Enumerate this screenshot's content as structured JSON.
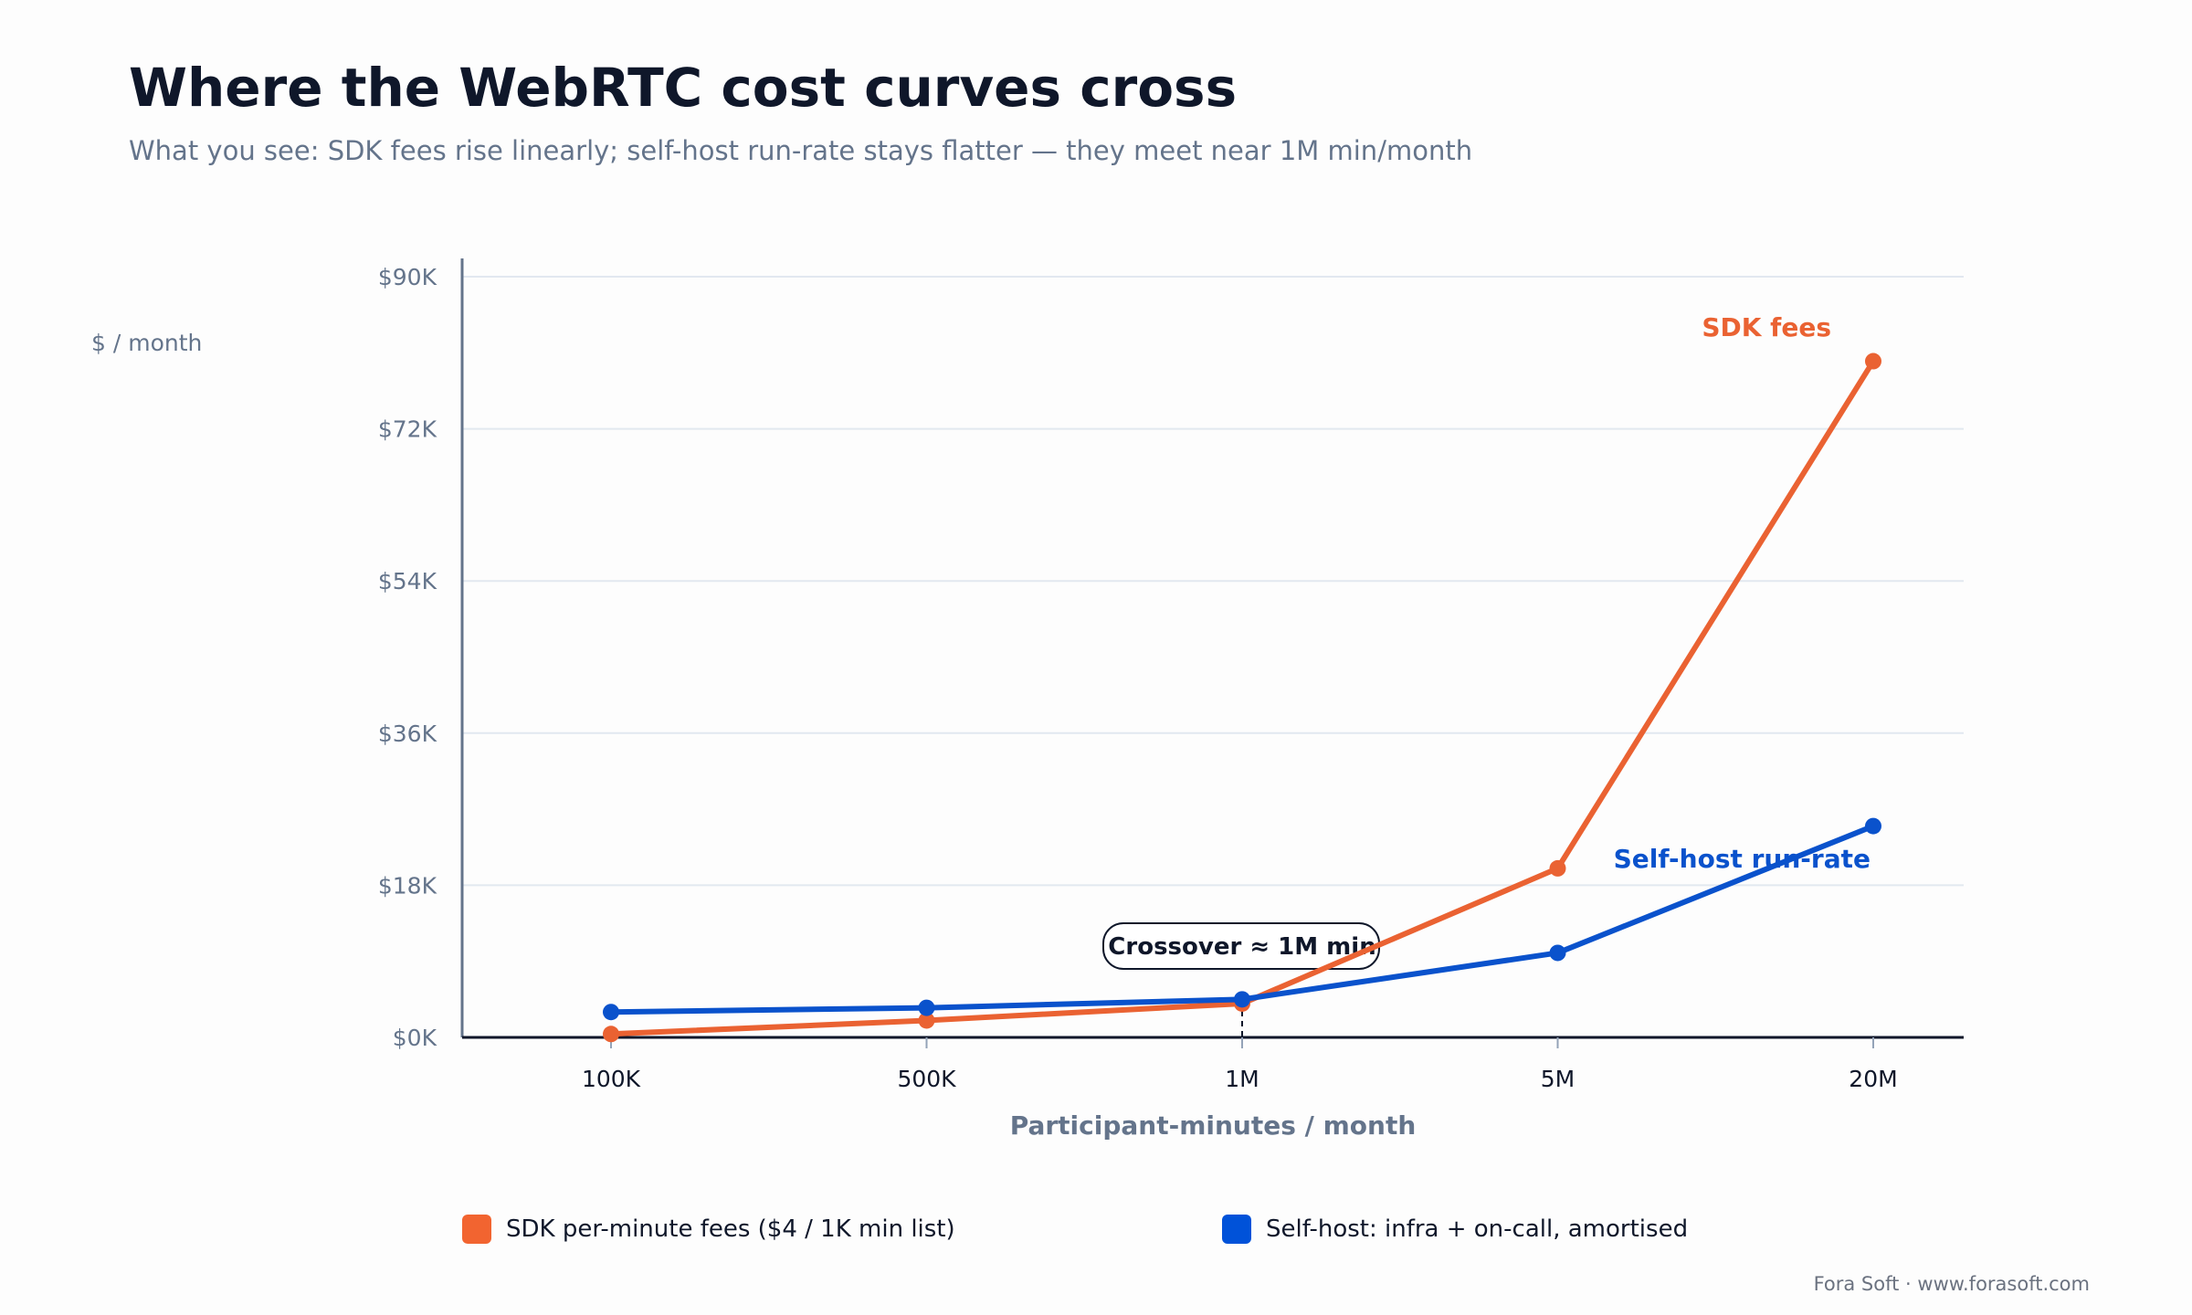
{
  "title": "Where the WebRTC cost curves cross",
  "subtitle": "What you see: SDK fees rise linearly; self-host run-rate stays flatter — they meet near 1M min/month",
  "footer": "Fora Soft · www.forasoft.com",
  "legend": [
    {
      "label": "SDK per-minute fees ($4 / 1K min list)",
      "color": "#f26430"
    },
    {
      "label": "Self-host: infra + on-call, amortised",
      "color": "#0052d9"
    }
  ],
  "chart_data": {
    "type": "line",
    "title": "Where the WebRTC cost curves cross",
    "subtitle": "What you see: SDK fees rise linearly; self-host run-rate stays flatter — they meet near 1M min/month",
    "xlabel": "Participant-minutes / month",
    "ylabel": "$ / month",
    "categories": [
      "100K",
      "500K",
      "1M",
      "5M",
      "20M"
    ],
    "ylim": [
      0,
      90000
    ],
    "yticks": [
      0,
      18000,
      36000,
      54000,
      72000,
      90000
    ],
    "ytick_labels": [
      "$0K",
      "$18K",
      "$36K",
      "$54K",
      "$72K",
      "$90K"
    ],
    "grid": true,
    "legend_position": "bottom",
    "series": [
      {
        "name": "SDK per-minute fees ($4 / 1K min list)",
        "label": "SDK fees",
        "color": "#ea6232",
        "values": [
          400,
          2000,
          4000,
          20000,
          80000
        ]
      },
      {
        "name": "Self-host: infra + on-call, amortised",
        "label": "Self-host run-rate",
        "color": "#0a52cc",
        "values": [
          3000,
          3500,
          4500,
          10000,
          25000
        ]
      }
    ],
    "annotation": {
      "text": "Crossover ≈ 1M min",
      "x": "1M"
    }
  }
}
